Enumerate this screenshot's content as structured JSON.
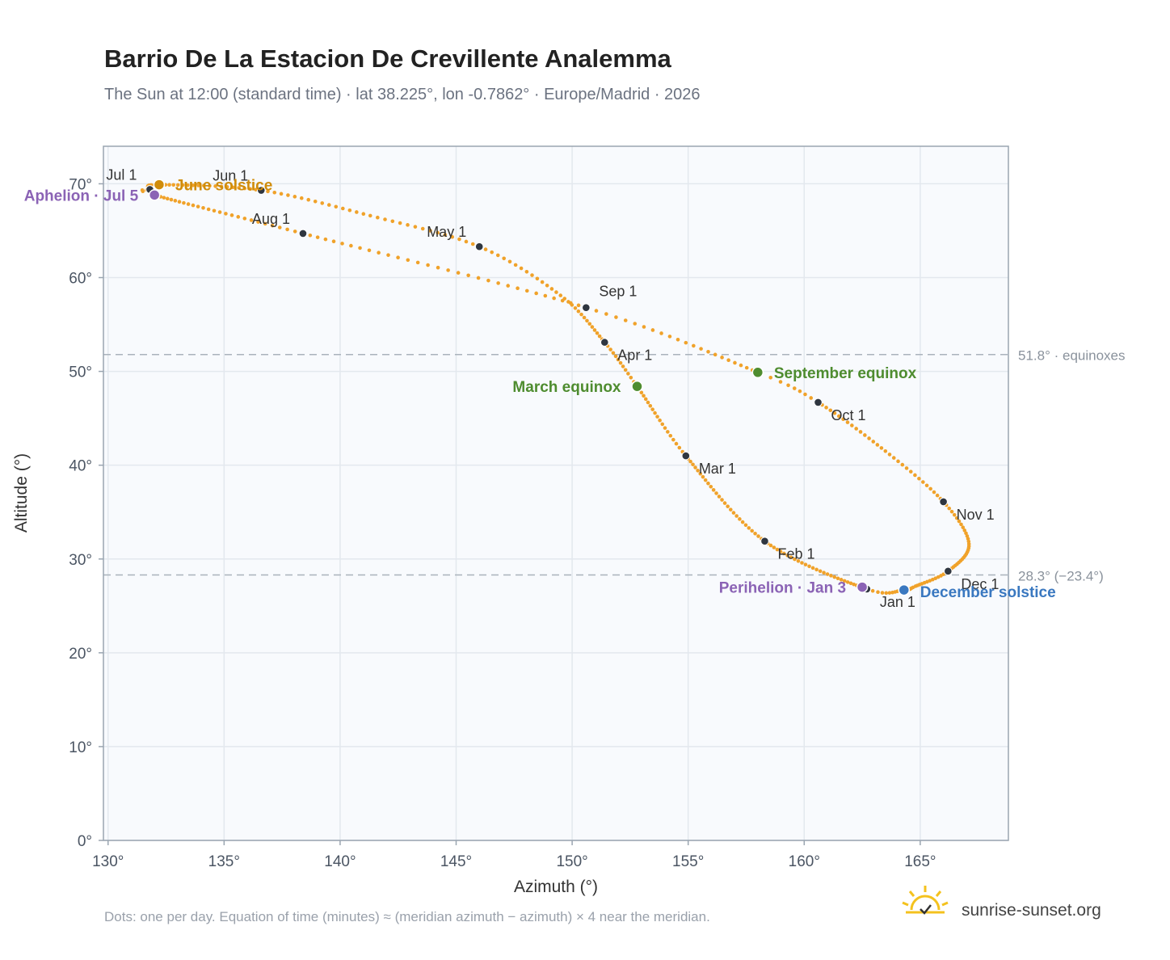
{
  "title": "Barrio De La Estacion De Crevillente Analemma",
  "subtitle": "The Sun at 12:00 (standard time) · lat 38.225°, lon -0.7862° · Europe/Madrid · 2026",
  "footnote": "Dots: one per day. Equation of time (minutes) ≈ (meridian azimuth − azimuth) × 4 near the meridian.",
  "brand": {
    "name": "sunrise-sunset.org",
    "icon": "sun-logo-icon"
  },
  "colors": {
    "curve": "#f0a22a",
    "month_dot": "#2f3640",
    "june_solstice": "#d08c0a",
    "december_solstice": "#3a78c0",
    "equinox": "#4e8c2f",
    "apsis": "#8b63b5",
    "plot_bg": "#f8fafd",
    "grid": "#e3e8ee",
    "reference_line": "#aab3bc"
  },
  "chart_data": {
    "type": "scatter",
    "title": "Barrio De La Estacion De Crevillente Analemma",
    "xlabel": "Azimuth (°)",
    "ylabel": "Altitude (°)",
    "xlim": [
      129.8,
      168.8
    ],
    "ylim": [
      0,
      74
    ],
    "x_ticks": [
      130,
      135,
      140,
      145,
      150,
      155,
      160,
      165
    ],
    "y_ticks": [
      0,
      10,
      20,
      30,
      40,
      50,
      60,
      70
    ],
    "x_tick_labels": [
      "130°",
      "135°",
      "140°",
      "145°",
      "150°",
      "155°",
      "160°",
      "165°"
    ],
    "y_tick_labels": [
      "0°",
      "10°",
      "20°",
      "30°",
      "40°",
      "50°",
      "60°",
      "70°"
    ],
    "grid": true,
    "curve_knots": [
      {
        "doy": 0,
        "az": 162.7,
        "alt": 26.8
      },
      {
        "doy": 31,
        "az": 158.3,
        "alt": 31.9
      },
      {
        "doy": 59,
        "az": 154.9,
        "alt": 41.0
      },
      {
        "doy": 78,
        "az": 152.8,
        "alt": 48.4
      },
      {
        "doy": 90,
        "az": 151.4,
        "alt": 53.1
      },
      {
        "doy": 105,
        "az": 149.5,
        "alt": 58.1
      },
      {
        "doy": 120,
        "az": 146.0,
        "alt": 63.3
      },
      {
        "doy": 135,
        "az": 141.3,
        "alt": 66.6
      },
      {
        "doy": 151,
        "az": 136.6,
        "alt": 69.3
      },
      {
        "doy": 171,
        "az": 132.2,
        "alt": 69.9
      },
      {
        "doy": 181,
        "az": 131.8,
        "alt": 69.4
      },
      {
        "doy": 185,
        "az": 132.0,
        "alt": 68.8
      },
      {
        "doy": 212,
        "az": 138.4,
        "alt": 64.7
      },
      {
        "doy": 243,
        "az": 150.6,
        "alt": 56.8
      },
      {
        "doy": 265,
        "az": 158.0,
        "alt": 49.9
      },
      {
        "doy": 273,
        "az": 160.6,
        "alt": 46.7
      },
      {
        "doy": 289,
        "az": 163.5,
        "alt": 41.5
      },
      {
        "doy": 304,
        "az": 166.0,
        "alt": 36.1
      },
      {
        "doy": 318,
        "az": 167.1,
        "alt": 31.6
      },
      {
        "doy": 334,
        "az": 166.2,
        "alt": 28.7
      },
      {
        "doy": 347,
        "az": 164.8,
        "alt": 27.1
      },
      {
        "doy": 354,
        "az": 164.3,
        "alt": 26.7
      },
      {
        "doy": 365,
        "az": 162.7,
        "alt": 26.8
      }
    ],
    "month_markers": [
      {
        "label": "Jan 1",
        "az": 162.7,
        "alt": 26.8,
        "anchor": "start"
      },
      {
        "label": "Feb 1",
        "az": 158.3,
        "alt": 31.9,
        "anchor": "start"
      },
      {
        "label": "Mar 1",
        "az": 154.9,
        "alt": 41.0,
        "anchor": "start"
      },
      {
        "label": "Apr 1",
        "az": 151.4,
        "alt": 53.1,
        "anchor": "start"
      },
      {
        "label": "May 1",
        "az": 146.0,
        "alt": 63.3,
        "anchor": "end"
      },
      {
        "label": "Jun 1",
        "az": 136.6,
        "alt": 69.3,
        "anchor": "end"
      },
      {
        "label": "Jul 1",
        "az": 131.8,
        "alt": 69.4,
        "anchor": "end"
      },
      {
        "label": "Aug 1",
        "az": 138.4,
        "alt": 64.7,
        "anchor": "end"
      },
      {
        "label": "Sep 1",
        "az": 150.6,
        "alt": 56.8,
        "anchor": "start"
      },
      {
        "label": "Oct 1",
        "az": 160.6,
        "alt": 46.7,
        "anchor": "start"
      },
      {
        "label": "Nov 1",
        "az": 166.0,
        "alt": 36.1,
        "anchor": "start"
      },
      {
        "label": "Dec 1",
        "az": 166.2,
        "alt": 28.7,
        "anchor": "start"
      }
    ],
    "events": [
      {
        "label": "June solstice",
        "az": 132.2,
        "alt": 69.9,
        "color": "#d08c0a",
        "anchor": "start"
      },
      {
        "label": "Aphelion · Jul 5",
        "az": 132.0,
        "alt": 68.8,
        "color": "#8b63b5",
        "anchor": "end"
      },
      {
        "label": "March equinox",
        "az": 152.8,
        "alt": 48.4,
        "color": "#4e8c2f",
        "anchor": "end"
      },
      {
        "label": "September equinox",
        "az": 158.0,
        "alt": 49.9,
        "color": "#4e8c2f",
        "anchor": "start"
      },
      {
        "label": "Perihelion · Jan 3",
        "az": 162.5,
        "alt": 27.0,
        "color": "#8b63b5",
        "anchor": "end"
      },
      {
        "label": "December solstice",
        "az": 164.3,
        "alt": 26.7,
        "color": "#3a78c0",
        "anchor": "start"
      }
    ],
    "reference_lines": [
      {
        "alt": 51.8,
        "label": "51.8° · equinoxes"
      },
      {
        "alt": 28.3,
        "label": "28.3° (−23.4°)"
      }
    ]
  }
}
